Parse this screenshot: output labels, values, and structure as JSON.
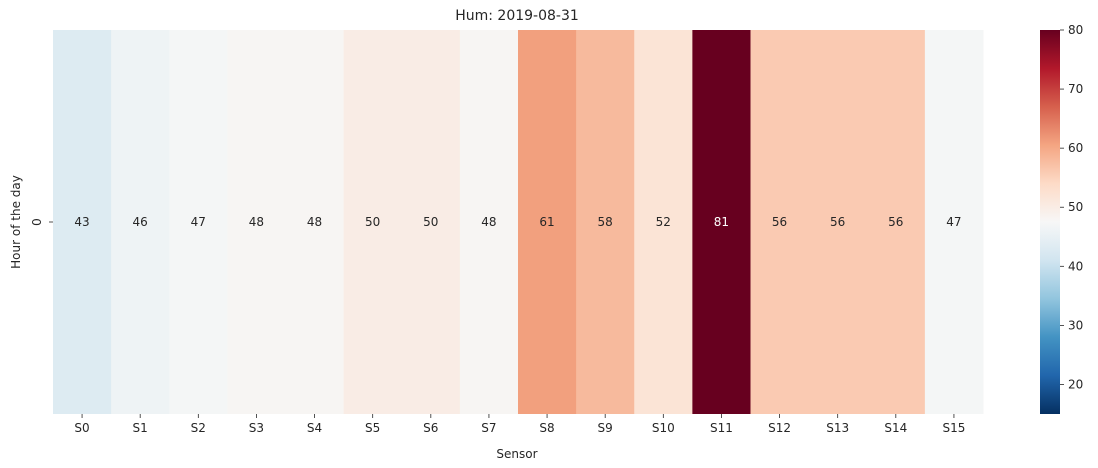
{
  "chart_data": {
    "type": "heatmap",
    "title": "Hum: 2019-08-31",
    "xlabel": "Sensor",
    "ylabel": "Hour of the day",
    "x_categories": [
      "S0",
      "S1",
      "S2",
      "S3",
      "S4",
      "S5",
      "S6",
      "S7",
      "S8",
      "S9",
      "S10",
      "S11",
      "S12",
      "S13",
      "S14",
      "S15"
    ],
    "y_categories": [
      "0"
    ],
    "values": [
      [
        43,
        46,
        47,
        48,
        48,
        50,
        50,
        48,
        61,
        58,
        52,
        81,
        56,
        56,
        56,
        47
      ]
    ],
    "value_labels": [
      "43",
      "46",
      "47",
      "48",
      "48",
      "50",
      "50",
      "48",
      "61",
      "58",
      "52",
      "81",
      "56",
      "56",
      "56",
      "47"
    ],
    "colormap": "RdBu_r",
    "color_range": [
      15,
      80
    ],
    "colorbar_ticks": [
      "20",
      "30",
      "40",
      "50",
      "60",
      "70",
      "80"
    ],
    "colorbar_tick_values": [
      20,
      30,
      40,
      50,
      60,
      70,
      80
    ],
    "annotated": true
  }
}
